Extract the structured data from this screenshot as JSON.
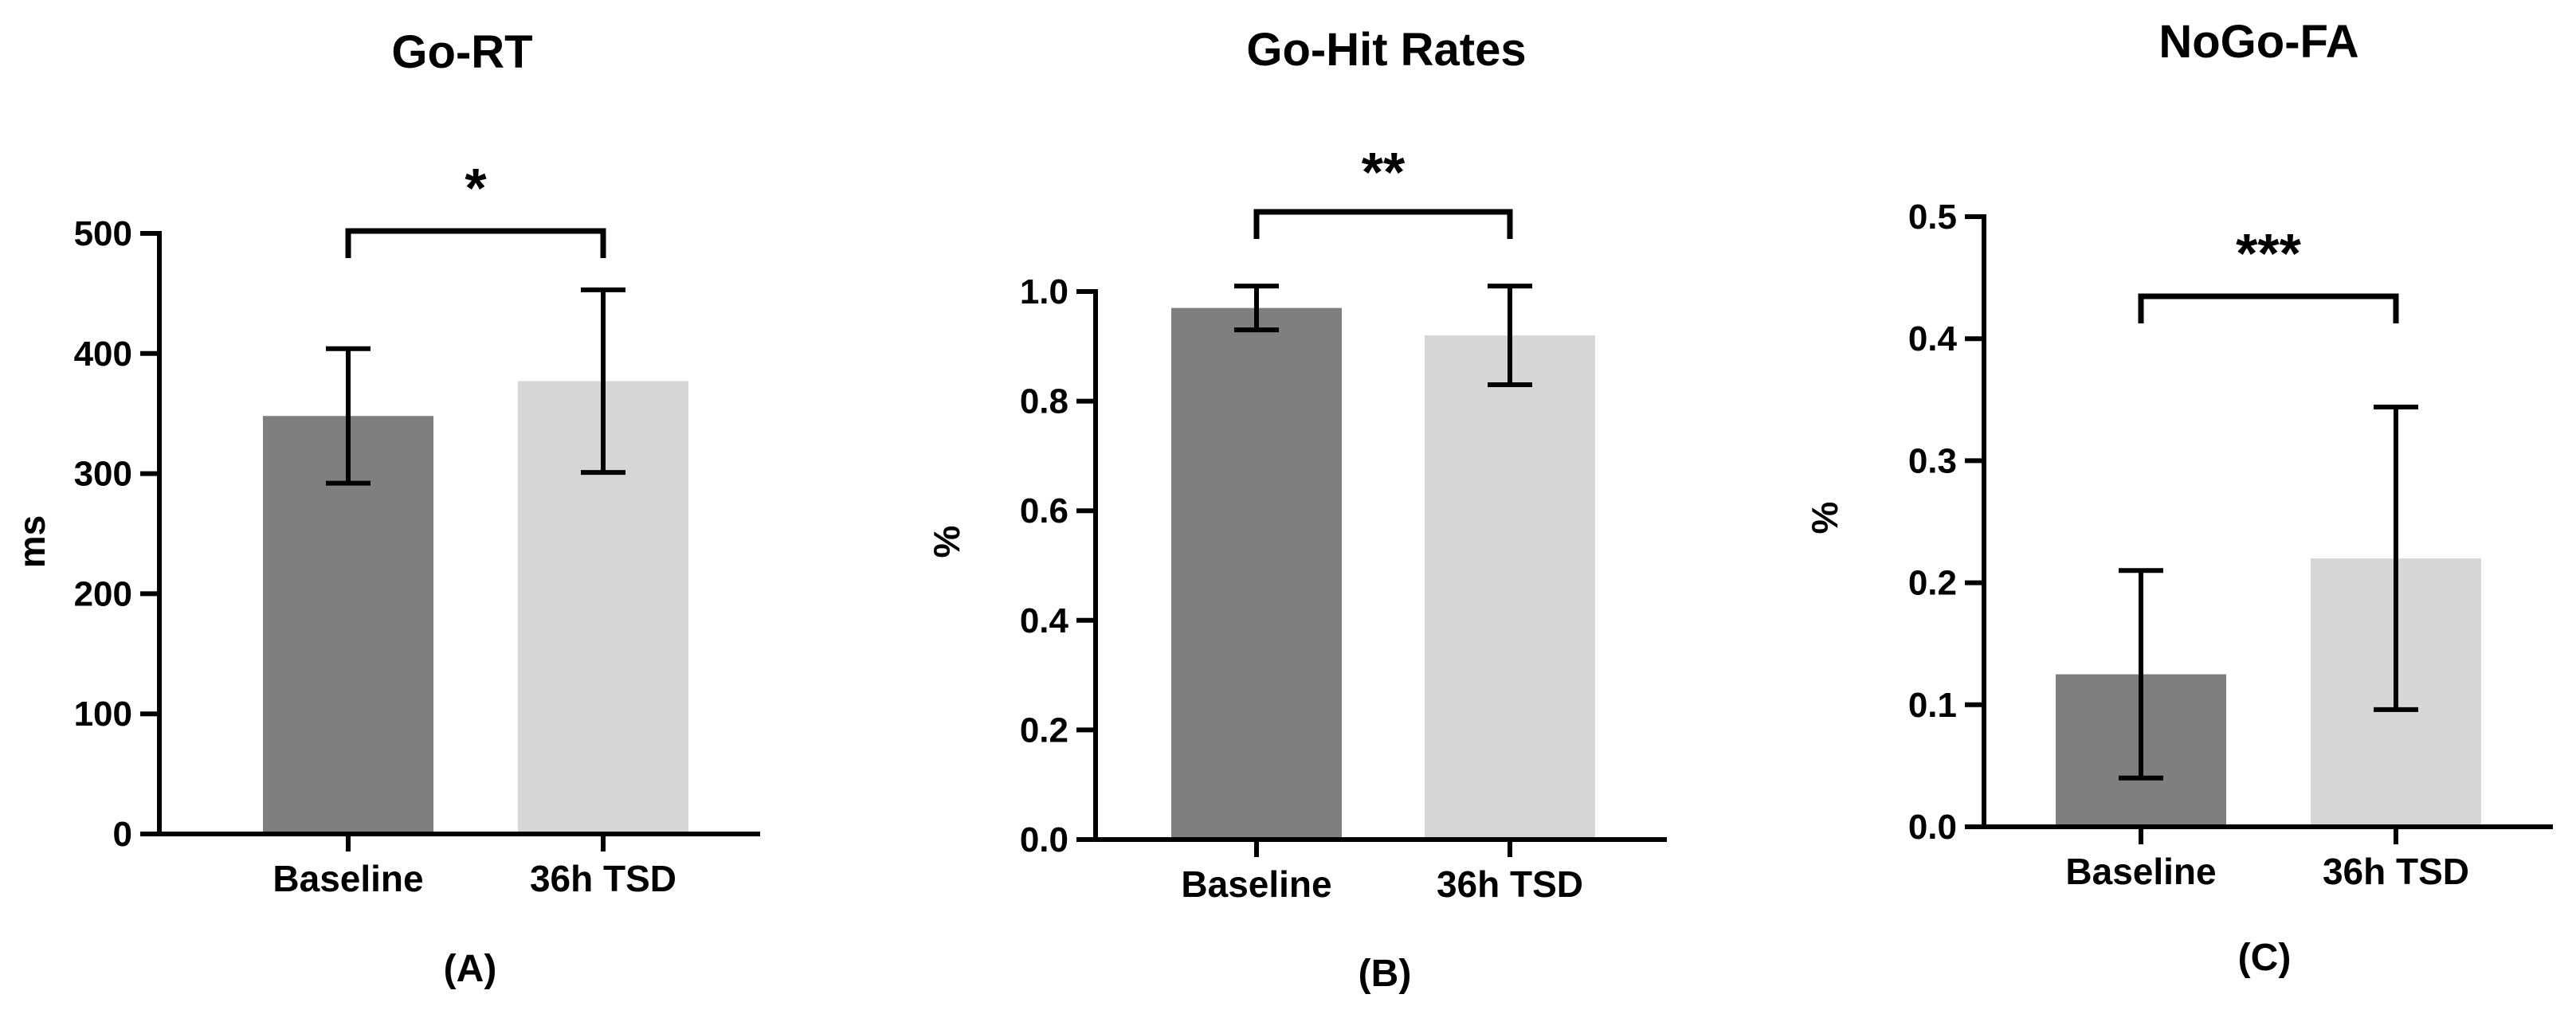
{
  "chart_data": [
    {
      "type": "bar",
      "title": "Go-RT",
      "panel_label": "(A)",
      "ylabel": "ms",
      "categories": [
        "Baseline",
        "36h TSD"
      ],
      "values": [
        348,
        377
      ],
      "errors": [
        56,
        76
      ],
      "ylim": [
        0,
        500
      ],
      "yticks": [
        0,
        100,
        200,
        300,
        400,
        500
      ],
      "ytick_labels": [
        "0",
        "100",
        "200",
        "300",
        "400",
        "500"
      ],
      "significance": "*",
      "bar_colors": [
        "#7f7f7f",
        "#d6d6d6"
      ]
    },
    {
      "type": "bar",
      "title": "Go-Hit Rates",
      "panel_label": "(B)",
      "ylabel": "%",
      "categories": [
        "Baseline",
        "36h TSD"
      ],
      "values": [
        0.97,
        0.92
      ],
      "errors": [
        0.04,
        0.09
      ],
      "ylim": [
        0,
        1.0
      ],
      "yticks": [
        0,
        0.2,
        0.4,
        0.6,
        0.8,
        1.0
      ],
      "ytick_labels": [
        "0.0",
        "0.2",
        "0.4",
        "0.6",
        "0.8",
        "1.0"
      ],
      "significance": "**",
      "bar_colors": [
        "#7f7f7f",
        "#d6d6d6"
      ]
    },
    {
      "type": "bar",
      "title": "NoGo-FA",
      "panel_label": "(C)",
      "ylabel": "%",
      "categories": [
        "Baseline",
        "36h TSD"
      ],
      "values": [
        0.125,
        0.22
      ],
      "errors": [
        0.085,
        0.124
      ],
      "ylim": [
        0,
        0.5
      ],
      "yticks": [
        0,
        0.1,
        0.2,
        0.3,
        0.4,
        0.5
      ],
      "ytick_labels": [
        "0.0",
        "0.1",
        "0.2",
        "0.3",
        "0.4",
        "0.5"
      ],
      "significance": "***",
      "bar_colors": [
        "#7f7f7f",
        "#d6d6d6"
      ]
    }
  ]
}
